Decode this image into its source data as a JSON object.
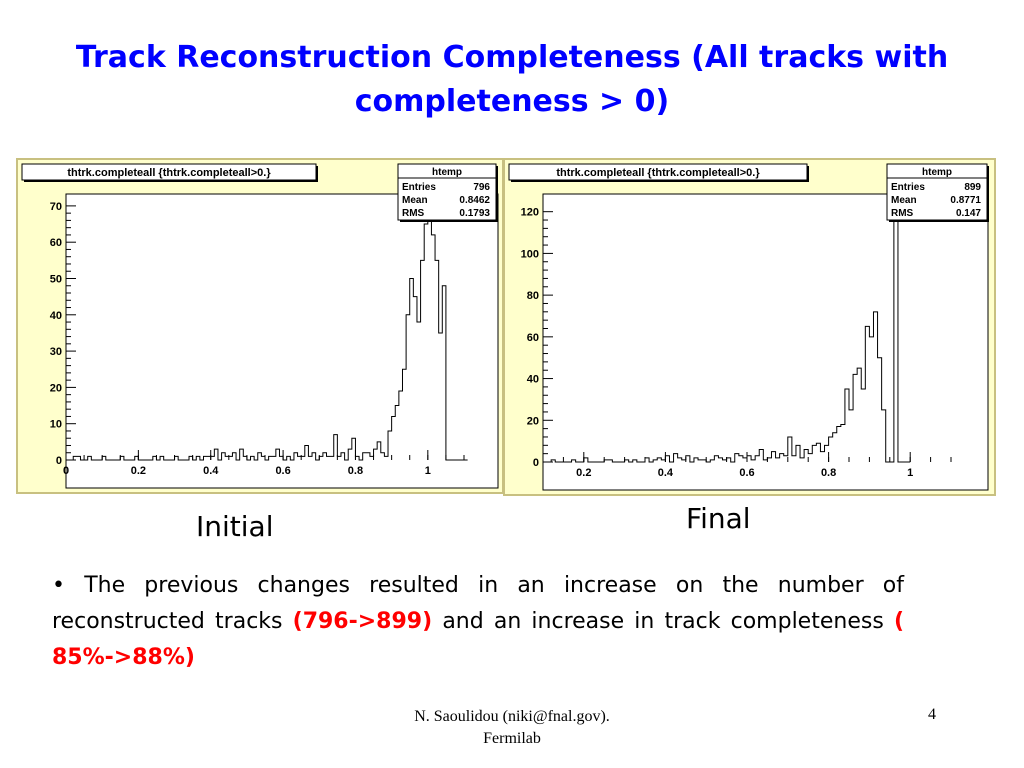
{
  "slide": {
    "title": "Track Reconstruction Completeness (All tracks with completeness > 0)",
    "caption_initial": "Initial",
    "caption_final": "Final",
    "bullet_pre": "The previous changes resulted in an increase on the number of reconstructed tracks ",
    "bullet_hl1": "(796->899)",
    "bullet_mid": " and an increase in track completeness ",
    "bullet_hl2": "( 85%->88%)",
    "footer_line1": "N. Saoulidou (niki@fnal.gov).",
    "footer_line2": "Fermilab",
    "page_number": "4",
    "colors": {
      "title": "#0000ff",
      "highlight": "#ff0000",
      "panel_bg": "#ffffcc",
      "plot_bg": "#ffffff"
    }
  },
  "chart_data": [
    {
      "type": "bar",
      "name": "initial",
      "title": "thtrk.completeall {thtrk.completeall>0.}",
      "stats": {
        "header": "htemp",
        "rows": [
          [
            "Entries",
            "796"
          ],
          [
            "Mean",
            "0.8462"
          ],
          [
            "RMS",
            "0.1793"
          ]
        ]
      },
      "xlim": [
        0,
        1.1
      ],
      "ylim": [
        0,
        73
      ],
      "xticks": [
        0,
        0.2,
        0.4,
        0.6,
        0.8,
        1
      ],
      "xtick_labels": [
        "0",
        "0.2",
        "0.4",
        "0.6",
        "0.8",
        "1"
      ],
      "yticks": [
        0,
        10,
        20,
        30,
        40,
        50,
        60,
        70
      ],
      "ytick_labels": [
        "0",
        "10",
        "20",
        "30",
        "40",
        "50",
        "60",
        "70"
      ],
      "bin_width": 0.01,
      "values": [
        0,
        0,
        1,
        1,
        0,
        0,
        1,
        0,
        0,
        0,
        1,
        0,
        0,
        0,
        0,
        1,
        0,
        0,
        0,
        1,
        0,
        0,
        0,
        0,
        1,
        0,
        1,
        0,
        0,
        0,
        1,
        0,
        0,
        0,
        1,
        0,
        1,
        0,
        1,
        1,
        1,
        3,
        0,
        2,
        1,
        1,
        2,
        0,
        3,
        1,
        0,
        1,
        0,
        2,
        1,
        0,
        1,
        1,
        3,
        1,
        0,
        1,
        0,
        2,
        1,
        1,
        4,
        1,
        2,
        0,
        1,
        2,
        1,
        1,
        7,
        1,
        2,
        0,
        3,
        6,
        1,
        0,
        2,
        2,
        1,
        3,
        5,
        2,
        1,
        8,
        12,
        15,
        19,
        25,
        40,
        50,
        45,
        38,
        55,
        65,
        68,
        62,
        55,
        35,
        48,
        0,
        0,
        0,
        0,
        0,
        0
      ]
    },
    {
      "type": "bar",
      "name": "final",
      "title": "thtrk.completeall {thtrk.completeall>0.}",
      "stats": {
        "header": "htemp",
        "rows": [
          [
            "Entries",
            "899"
          ],
          [
            "Mean",
            "0.8771"
          ],
          [
            "RMS",
            "0.147"
          ]
        ]
      },
      "xlim": [
        0.1,
        1.1
      ],
      "ylim": [
        0,
        128
      ],
      "xticks": [
        0.2,
        0.4,
        0.6,
        0.8,
        1
      ],
      "xtick_labels": [
        "0.2",
        "0.4",
        "0.6",
        "0.8",
        "1"
      ],
      "yticks": [
        0,
        20,
        40,
        60,
        80,
        100,
        120
      ],
      "ytick_labels": [
        "0",
        "20",
        "40",
        "60",
        "80",
        "100",
        "120"
      ],
      "bin_width": 0.01,
      "values": [
        0,
        0,
        1,
        0,
        0,
        0,
        0,
        1,
        0,
        0,
        2,
        0,
        0,
        0,
        0,
        1,
        1,
        0,
        0,
        0,
        1,
        0,
        1,
        0,
        0,
        2,
        0,
        1,
        2,
        1,
        3,
        0,
        4,
        2,
        1,
        3,
        0,
        2,
        1,
        1,
        0,
        1,
        3,
        2,
        1,
        2,
        0,
        4,
        3,
        2,
        3,
        1,
        3,
        6,
        1,
        2,
        5,
        2,
        4,
        3,
        12,
        3,
        8,
        2,
        6,
        4,
        8,
        9,
        5,
        8,
        12,
        14,
        17,
        18,
        35,
        25,
        42,
        45,
        35,
        65,
        60,
        72,
        50,
        25,
        0,
        0,
        126,
        0,
        0,
        0
      ]
    }
  ]
}
